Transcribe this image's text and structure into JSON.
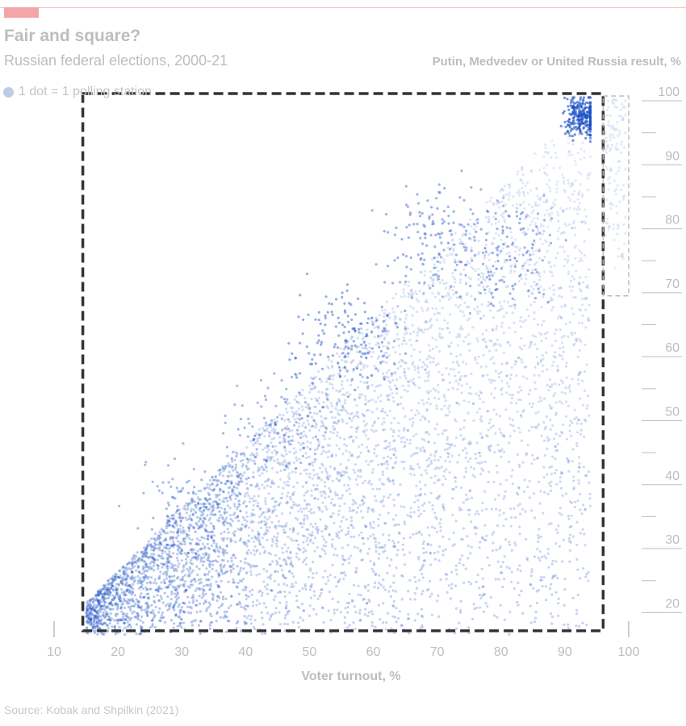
{
  "chart_data": {
    "type": "scatter",
    "title": "Fair and square?",
    "subtitle": "Russian federal elections, 2000-21",
    "ylabel": "Putin, Medvedev or United Russia result, %",
    "xlabel": "Voter turnout, %",
    "legend": "1 dot = 1 polling station",
    "source": "Source: Kobak and Shpilkin (2021)",
    "xlim": [
      10,
      100
    ],
    "ylim": [
      15,
      100
    ],
    "x_ticks": [
      "10",
      "20",
      "30",
      "40",
      "50",
      "60",
      "70",
      "80",
      "90",
      "100"
    ],
    "y_ticks": [
      "20",
      "30",
      "40",
      "50",
      "60",
      "70",
      "80",
      "90",
      "100"
    ],
    "point_color": "#1a4fc4",
    "highlight_boxes": [
      {
        "style": "dashed-dark",
        "x": [
          14.5,
          96
        ],
        "y": [
          15,
          100
        ]
      },
      {
        "style": "dashed-light",
        "x": [
          96,
          100
        ],
        "y": [
          68,
          100
        ]
      }
    ],
    "clusters": [
      {
        "x": 93,
        "y": 96,
        "weight": 1.0
      },
      {
        "x": 56,
        "y": 61,
        "weight": 0.6
      },
      {
        "x": 69,
        "y": 77,
        "weight": 0.5
      },
      {
        "x": 81,
        "y": 75,
        "weight": 0.5
      },
      {
        "x": 31,
        "y": 35,
        "weight": 0.4
      },
      {
        "x": 45,
        "y": 48,
        "weight": 0.4
      }
    ]
  },
  "colors": {
    "accent": "#f4a6a6",
    "text_muted": "#bdbdbd",
    "dots": "#1a4fc4"
  }
}
